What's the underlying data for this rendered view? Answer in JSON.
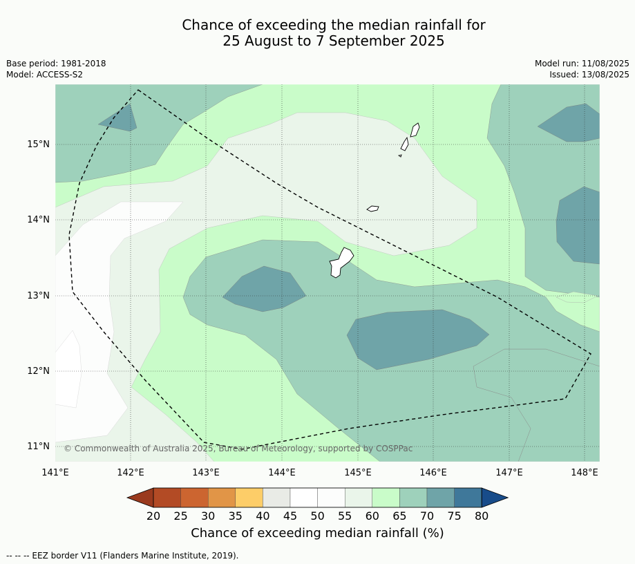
{
  "title_line1": "Chance of exceeding the median rainfall for",
  "title_line2": "25 August to 7 September 2025",
  "base_period": "Base period: 1981-2018",
  "model": "Model: ACCESS-S2",
  "model_run": "Model run: 11/08/2025",
  "issued": "Issued: 13/08/2025",
  "copyright": "© Commonwealth of Australia 2025, Bureau of Meteorology, supported by COSPPac",
  "lon_labels": [
    "141°E",
    "142°E",
    "143°E",
    "144°E",
    "145°E",
    "146°E",
    "147°E",
    "148°E"
  ],
  "lat_labels": [
    "15°N",
    "14°N",
    "13°N",
    "12°N",
    "11°N"
  ],
  "colorbar": {
    "ticks": [
      "20",
      "25",
      "30",
      "35",
      "40",
      "45",
      "50",
      "55",
      "60",
      "65",
      "70",
      "75",
      "80"
    ],
    "colors": [
      "#9a3a1e",
      "#b34b25",
      "#cc6530",
      "#e19547",
      "#fdcd68",
      "#e9ebe6",
      "#ffffff",
      "#fcfdfc",
      "#eaf5ea",
      "#c9fcc9",
      "#9ed1bb",
      "#6fa4a8",
      "#3f789a",
      "#184c8a"
    ],
    "label": "Chance of exceeding median rainfall (%)"
  },
  "legend_note": "--  --  -- EEZ border V11 (Flanders Marine Institute, 2019)."
}
